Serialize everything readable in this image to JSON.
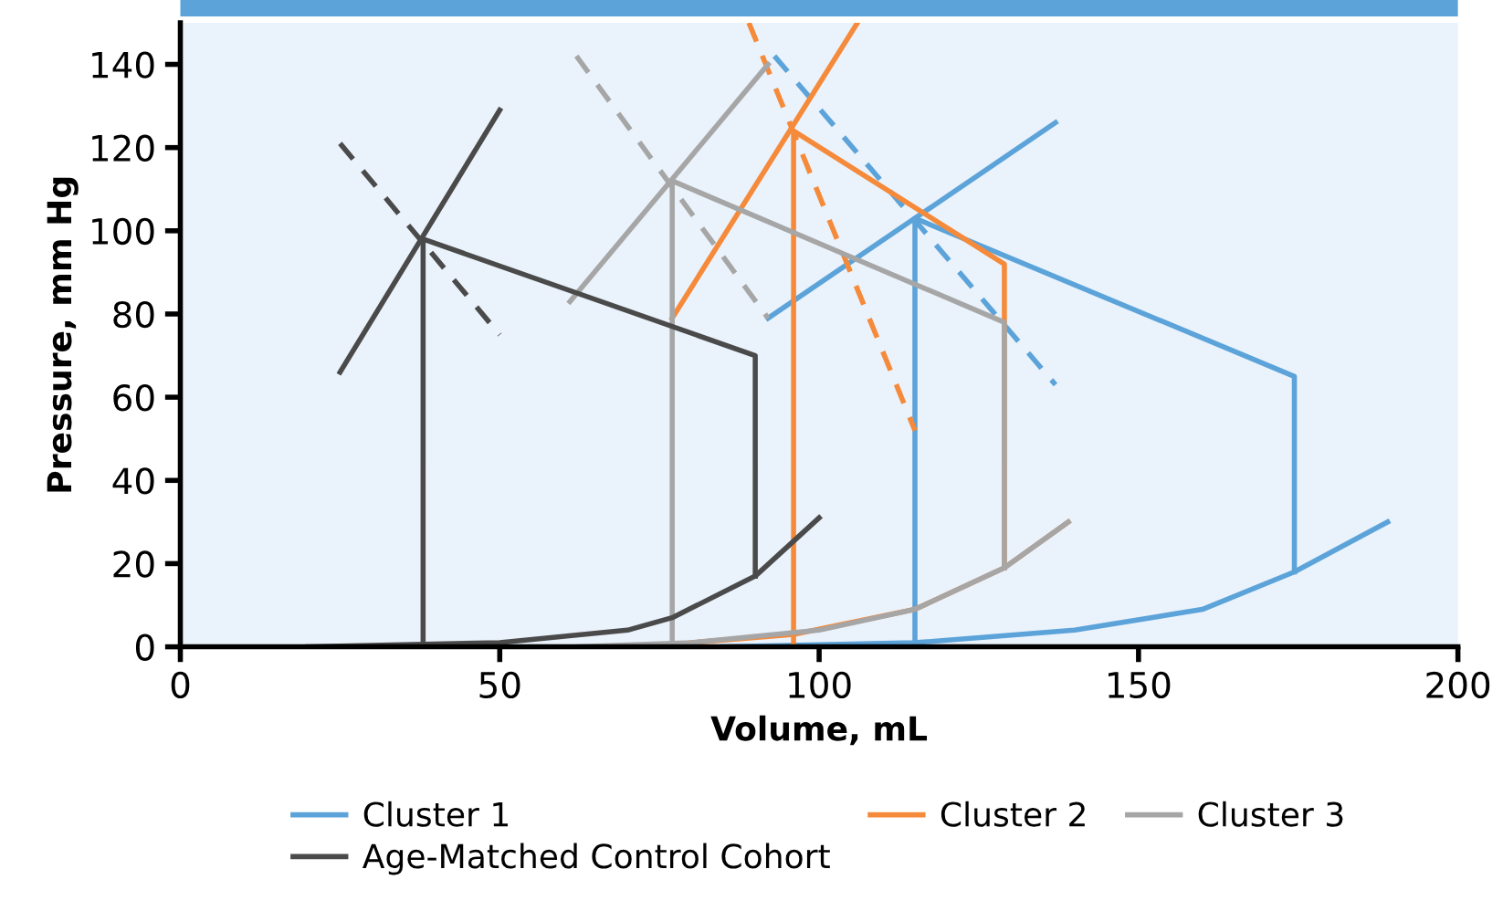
{
  "chart_data": {
    "type": "line",
    "xlabel": "Volume, mL",
    "ylabel": "Pressure, mm Hg",
    "xlim": [
      0,
      200
    ],
    "xticks": [
      0,
      50,
      100,
      150,
      200
    ],
    "ylim": [
      0,
      150
    ],
    "yticks": [
      0,
      20,
      40,
      60,
      80,
      100,
      120,
      140
    ],
    "grid": false,
    "legend": "bottom",
    "marker": "none",
    "series": [
      {
        "name": "Cluster 1",
        "color": "#5ba3d9",
        "x": [
          115,
          115,
          174.4,
          174.4
        ],
        "values": [
          0,
          103,
          65,
          18
        ]
      },
      {
        "color": "#5ba3d9",
        "x": [
          85,
          115,
          140,
          160,
          174.4,
          189
        ],
        "values": [
          0,
          1,
          4,
          9,
          18,
          30
        ]
      },
      {
        "color": "#5ba3d9",
        "x": [
          92,
          137
        ],
        "values": [
          79,
          126
        ]
      },
      {
        "color": "#5ba3d9",
        "line_style": "dashed",
        "x": [
          93,
          137
        ],
        "values": [
          142,
          63
        ]
      },
      {
        "name": "Cluster 2",
        "color": "#f58a3a",
        "x": [
          96,
          96,
          129,
          129
        ],
        "values": [
          0,
          124,
          92,
          19
        ]
      },
      {
        "color": "#f58a3a",
        "x": [
          80,
          96,
          115,
          129,
          139
        ],
        "values": [
          1,
          3,
          9,
          19,
          30
        ]
      },
      {
        "color": "#f58a3a",
        "x": [
          77,
          106
        ],
        "values": [
          79,
          150
        ]
      },
      {
        "color": "#f58a3a",
        "line_style": "dashed",
        "x": [
          89,
          115
        ],
        "values": [
          150,
          52
        ]
      },
      {
        "name": "Cluster 3",
        "color": "#a6a6a6",
        "x": [
          77,
          77,
          129,
          129
        ],
        "values": [
          0,
          112,
          78,
          19
        ]
      },
      {
        "color": "#a6a6a6",
        "x": [
          62,
          80,
          100,
          115,
          129,
          139
        ],
        "values": [
          0,
          1,
          4,
          9,
          19,
          30
        ]
      },
      {
        "color": "#a6a6a6",
        "x": [
          61,
          92
        ],
        "values": [
          83,
          140
        ]
      },
      {
        "color": "#a6a6a6",
        "line_style": "dashed",
        "x": [
          62,
          92
        ],
        "values": [
          142,
          79
        ]
      },
      {
        "name": "Age-Matched Control Cohort",
        "color": "#4a4a4a",
        "x": [
          38,
          38,
          90,
          90
        ],
        "values": [
          0,
          98,
          70,
          17
        ]
      },
      {
        "color": "#4a4a4a",
        "x": [
          20,
          50,
          70,
          77,
          90,
          100
        ],
        "values": [
          0,
          1,
          4,
          7,
          17,
          31
        ]
      },
      {
        "color": "#4a4a4a",
        "x": [
          25,
          50
        ],
        "values": [
          66,
          129
        ]
      },
      {
        "color": "#4a4a4a",
        "line_style": "dashed",
        "x": [
          25,
          50
        ],
        "values": [
          121,
          75
        ]
      }
    ]
  }
}
